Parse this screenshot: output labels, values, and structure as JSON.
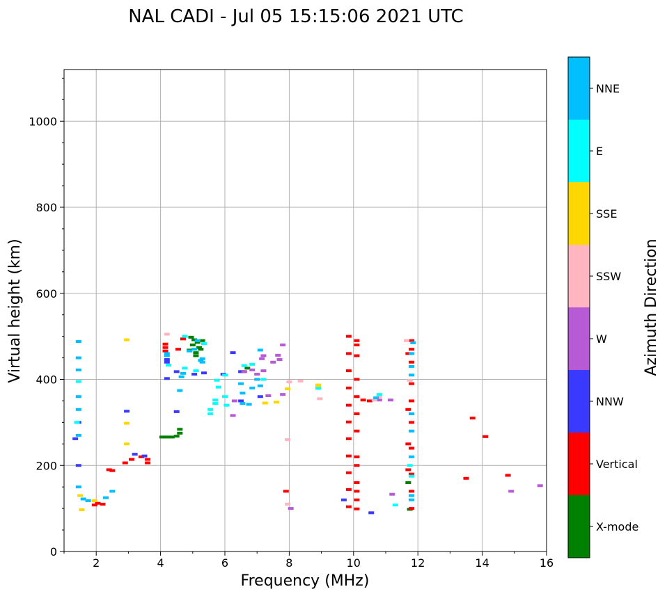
{
  "chart_data": {
    "type": "scatter",
    "title": "NAL CADI - Jul 05 15:15:06 2021 UTC",
    "xlabel": "Frequency (MHz)",
    "ylabel": "Virtual height (km)",
    "xlim": [
      1,
      16
    ],
    "ylim": [
      0,
      1120
    ],
    "xticks": [
      "2",
      "4",
      "6",
      "8",
      "10",
      "12",
      "14",
      "16"
    ],
    "xtick_values": [
      2,
      4,
      6,
      8,
      10,
      12,
      14,
      16
    ],
    "yticks": [
      "0",
      "200",
      "400",
      "600",
      "800",
      "1000"
    ],
    "ytick_values": [
      0,
      200,
      400,
      600,
      800,
      1000
    ],
    "grid": true,
    "colorbar": {
      "label": "Azimuth Direction",
      "categories": [
        "X-mode",
        "Vertical",
        "NNW",
        "W",
        "SSW",
        "SSE",
        "E",
        "NNE"
      ],
      "colors": [
        "#008000",
        "#ff0000",
        "#3a3aff",
        "#b65ad6",
        "#ffb6c1",
        "#ffd700",
        "#00ffff",
        "#00bfff"
      ]
    },
    "series": [
      {
        "name": "X-mode",
        "points": [
          [
            4.05,
            266
          ],
          [
            4.15,
            266
          ],
          [
            4.25,
            266
          ],
          [
            4.35,
            266
          ],
          [
            4.5,
            268
          ],
          [
            4.6,
            275
          ],
          [
            4.6,
            284
          ],
          [
            4.95,
            498
          ],
          [
            5.05,
            492
          ],
          [
            5.15,
            486
          ],
          [
            5.0,
            480
          ],
          [
            5.2,
            474
          ],
          [
            4.9,
            468
          ],
          [
            5.1,
            462
          ],
          [
            5.25,
            470
          ],
          [
            5.3,
            490
          ],
          [
            5.1,
            455
          ],
          [
            6.55,
            418
          ],
          [
            6.7,
            426
          ],
          [
            11.7,
            160
          ],
          [
            11.75,
            98
          ]
        ]
      },
      {
        "name": "Vertical",
        "points": [
          [
            4.15,
            466
          ],
          [
            4.15,
            474
          ],
          [
            4.15,
            482
          ],
          [
            4.55,
            470
          ],
          [
            4.7,
            494
          ],
          [
            3.6,
            206
          ],
          [
            3.6,
            214
          ],
          [
            3.4,
            220
          ],
          [
            3.1,
            214
          ],
          [
            2.9,
            206
          ],
          [
            2.5,
            188
          ],
          [
            2.4,
            190
          ],
          [
            1.95,
            108
          ],
          [
            2.05,
            112
          ],
          [
            2.2,
            110
          ],
          [
            6.6,
            418
          ],
          [
            9.85,
            104
          ],
          [
            9.85,
            144
          ],
          [
            9.85,
            183
          ],
          [
            9.85,
            222
          ],
          [
            9.85,
            262
          ],
          [
            9.85,
            301
          ],
          [
            9.85,
            340
          ],
          [
            9.85,
            380
          ],
          [
            9.85,
            420
          ],
          [
            9.85,
            460
          ],
          [
            9.85,
            500
          ],
          [
            10.1,
            99
          ],
          [
            10.1,
            120
          ],
          [
            10.1,
            140
          ],
          [
            10.1,
            160
          ],
          [
            10.1,
            200
          ],
          [
            10.1,
            220
          ],
          [
            10.1,
            280
          ],
          [
            10.1,
            320
          ],
          [
            10.1,
            360
          ],
          [
            10.1,
            400
          ],
          [
            10.1,
            455
          ],
          [
            10.1,
            480
          ],
          [
            10.1,
            490
          ],
          [
            10.3,
            352
          ],
          [
            10.5,
            350
          ],
          [
            11.8,
            100
          ],
          [
            11.8,
            140
          ],
          [
            11.8,
            180
          ],
          [
            11.8,
            240
          ],
          [
            11.8,
            300
          ],
          [
            11.8,
            350
          ],
          [
            11.8,
            390
          ],
          [
            11.8,
            440
          ],
          [
            11.8,
            470
          ],
          [
            11.8,
            490
          ],
          [
            11.7,
            190
          ],
          [
            11.7,
            250
          ],
          [
            11.7,
            330
          ],
          [
            11.7,
            460
          ],
          [
            13.7,
            310
          ],
          [
            14.1,
            267
          ],
          [
            13.5,
            170
          ],
          [
            14.8,
            177
          ],
          [
            7.9,
            140
          ]
        ]
      },
      {
        "name": "NNW",
        "points": [
          [
            4.2,
            440
          ],
          [
            4.2,
            446
          ],
          [
            4.2,
            402
          ],
          [
            4.5,
            418
          ],
          [
            5.05,
            412
          ],
          [
            5.35,
            415
          ],
          [
            5.95,
            412
          ],
          [
            6.25,
            462
          ],
          [
            6.5,
            350
          ],
          [
            6.5,
            418
          ],
          [
            7.1,
            360
          ],
          [
            2.95,
            326
          ],
          [
            10.55,
            90
          ],
          [
            1.35,
            262
          ],
          [
            1.45,
            200
          ],
          [
            1.45,
            300
          ],
          [
            3.5,
            222
          ],
          [
            3.2,
            226
          ],
          [
            4.5,
            325
          ],
          [
            9.7,
            120
          ]
        ]
      },
      {
        "name": "W",
        "points": [
          [
            6.25,
            316
          ],
          [
            6.3,
            350
          ],
          [
            6.6,
            418
          ],
          [
            6.85,
            422
          ],
          [
            7.0,
            412
          ],
          [
            7.15,
            448
          ],
          [
            7.2,
            455
          ],
          [
            7.35,
            362
          ],
          [
            7.8,
            480
          ],
          [
            7.7,
            446
          ],
          [
            7.65,
            456
          ],
          [
            7.5,
            440
          ],
          [
            7.8,
            365
          ],
          [
            7.2,
            420
          ],
          [
            10.8,
            352
          ],
          [
            11.15,
            352
          ],
          [
            11.2,
            133
          ],
          [
            15.8,
            153
          ],
          [
            14.9,
            140
          ],
          [
            8.05,
            100
          ]
        ]
      },
      {
        "name": "SSW",
        "points": [
          [
            8.95,
            355
          ],
          [
            8.35,
            396
          ],
          [
            8.0,
            394
          ],
          [
            7.95,
            260
          ],
          [
            7.95,
            110
          ],
          [
            4.2,
            505
          ],
          [
            11.65,
            490
          ],
          [
            11.75,
            398
          ],
          [
            10.8,
            360
          ],
          [
            10.65,
            352
          ]
        ]
      },
      {
        "name": "SSE",
        "points": [
          [
            8.9,
            383
          ],
          [
            8.9,
            387
          ],
          [
            2.95,
            492
          ],
          [
            2.95,
            298
          ],
          [
            2.95,
            250
          ],
          [
            7.6,
            347
          ],
          [
            7.25,
            345
          ],
          [
            1.55,
            97
          ],
          [
            1.5,
            130
          ],
          [
            1.95,
            118
          ],
          [
            7.95,
            378
          ]
        ]
      },
      {
        "name": "E",
        "points": [
          [
            8.9,
            379
          ],
          [
            5.7,
            352
          ],
          [
            5.7,
            344
          ],
          [
            5.55,
            330
          ],
          [
            5.55,
            320
          ],
          [
            6.05,
            340
          ],
          [
            6.0,
            360
          ],
          [
            5.8,
            382
          ],
          [
            5.75,
            398
          ],
          [
            6.0,
            410
          ],
          [
            4.25,
            433
          ],
          [
            4.75,
            426
          ],
          [
            5.1,
            420
          ],
          [
            6.6,
            432
          ],
          [
            6.85,
            435
          ],
          [
            7.2,
            400
          ],
          [
            10.8,
            365
          ],
          [
            11.3,
            108
          ],
          [
            11.75,
            200
          ],
          [
            1.4,
            300
          ],
          [
            1.45,
            395
          ],
          [
            4.75,
            500
          ],
          [
            5.35,
            483
          ],
          [
            11.8,
            175
          ]
        ]
      },
      {
        "name": "NNE",
        "points": [
          [
            4.2,
            455
          ],
          [
            4.2,
            460
          ],
          [
            4.65,
            406
          ],
          [
            4.7,
            414
          ],
          [
            5.15,
            490
          ],
          [
            5.25,
            444
          ],
          [
            5.3,
            440
          ],
          [
            5.3,
            448
          ],
          [
            6.5,
            390
          ],
          [
            6.55,
            368
          ],
          [
            6.85,
            380
          ],
          [
            7.1,
            385
          ],
          [
            7.0,
            400
          ],
          [
            6.75,
            342
          ],
          [
            6.55,
            344
          ],
          [
            7.1,
            468
          ],
          [
            4.6,
            374
          ],
          [
            10.7,
            357
          ],
          [
            11.8,
            430
          ],
          [
            11.8,
            410
          ],
          [
            11.8,
            320
          ],
          [
            11.8,
            280
          ],
          [
            11.8,
            220
          ],
          [
            11.8,
            130
          ],
          [
            11.8,
            120
          ],
          [
            11.8,
            460
          ],
          [
            11.85,
            485
          ],
          [
            1.45,
            488
          ],
          [
            1.45,
            450
          ],
          [
            1.45,
            422
          ],
          [
            1.45,
            360
          ],
          [
            1.45,
            330
          ],
          [
            1.45,
            270
          ],
          [
            1.45,
            150
          ],
          [
            1.6,
            122
          ],
          [
            1.75,
            118
          ],
          [
            2.3,
            125
          ],
          [
            2.5,
            140
          ],
          [
            4.9,
            466
          ],
          [
            5.05,
            470
          ]
        ]
      }
    ]
  }
}
